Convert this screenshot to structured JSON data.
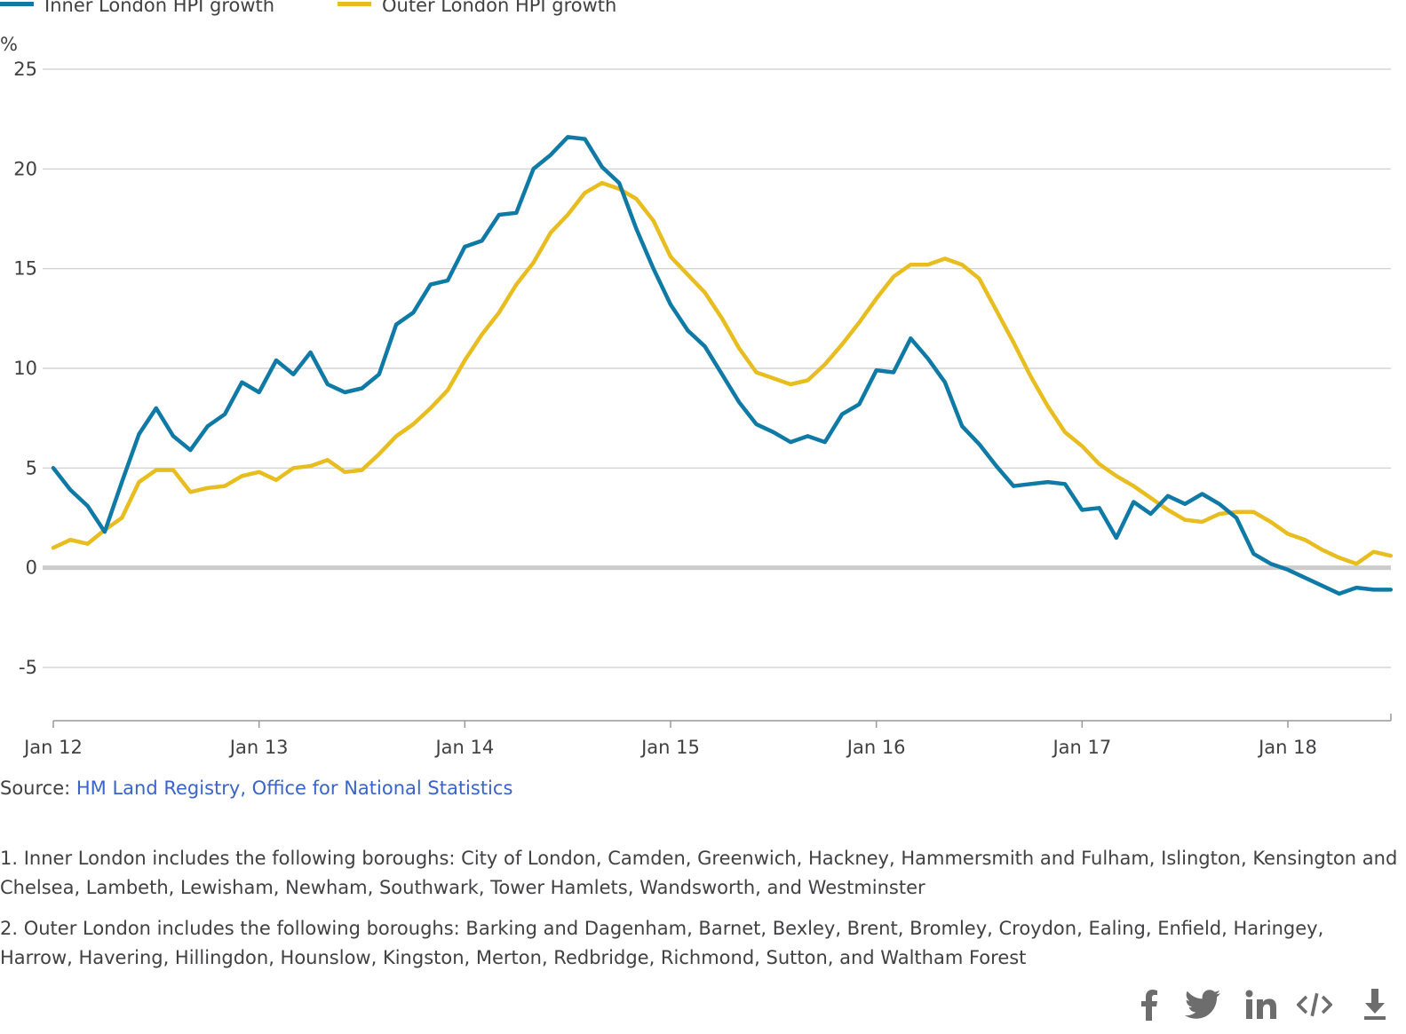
{
  "legend": {
    "inner_label": "Inner London HPI growth",
    "outer_label": "Outer London HPI growth"
  },
  "colors": {
    "inner": "#0f7aa5",
    "outer": "#e8bd20",
    "grid": "#cccccc",
    "zero": "#cccccc",
    "link": "#3a64c8"
  },
  "chart_data": {
    "type": "line",
    "title": "",
    "ylabel": "%",
    "xlabel": "",
    "ylim": [
      -7.5,
      25
    ],
    "yticks": [
      25,
      20,
      15,
      10,
      5,
      0,
      -5
    ],
    "ytick_labels": [
      "25",
      "20",
      "15",
      "10",
      "5",
      "0",
      "-5"
    ],
    "x_start": "Jan 12",
    "x_tick_labels": [
      "Jan 12",
      "Jan 13",
      "Jan 14",
      "Jan 15",
      "Jan 16",
      "Jan 17",
      "Jan 18"
    ],
    "x_tick_month_index": [
      0,
      12,
      24,
      36,
      48,
      60,
      72
    ],
    "grid": true,
    "legend_position": "top-left",
    "series": [
      {
        "name": "Inner London HPI growth",
        "values": [
          5.0,
          3.9,
          3.1,
          1.8,
          4.3,
          6.7,
          8.0,
          6.6,
          5.9,
          7.1,
          7.7,
          9.3,
          8.8,
          10.4,
          9.7,
          10.8,
          9.2,
          8.8,
          9.0,
          9.7,
          12.2,
          12.8,
          14.2,
          14.4,
          16.1,
          16.4,
          17.7,
          17.8,
          20.0,
          20.7,
          21.6,
          21.5,
          20.1,
          19.3,
          17.0,
          15.0,
          13.2,
          11.9,
          11.1,
          9.7,
          8.3,
          7.2,
          6.8,
          6.3,
          6.6,
          6.3,
          7.7,
          8.2,
          9.9,
          9.8,
          11.5,
          10.5,
          9.3,
          7.1,
          6.2,
          5.1,
          4.1,
          4.2,
          4.3,
          4.2,
          2.9,
          3.0,
          1.5,
          3.3,
          2.7,
          3.6,
          3.2,
          3.7,
          3.2,
          2.5,
          0.7,
          0.2,
          -0.1,
          -0.5,
          -0.9,
          -1.3,
          -1.0,
          -1.1,
          -1.1
        ]
      },
      {
        "name": "Outer London HPI growth",
        "values": [
          1.0,
          1.4,
          1.2,
          1.9,
          2.5,
          4.3,
          4.9,
          4.9,
          3.8,
          4.0,
          4.1,
          4.6,
          4.8,
          4.4,
          5.0,
          5.1,
          5.4,
          4.8,
          4.9,
          5.7,
          6.6,
          7.2,
          8.0,
          8.9,
          10.4,
          11.7,
          12.8,
          14.2,
          15.3,
          16.8,
          17.7,
          18.8,
          19.3,
          19.0,
          18.5,
          17.4,
          15.6,
          14.7,
          13.8,
          12.5,
          11.0,
          9.8,
          9.5,
          9.2,
          9.4,
          10.2,
          11.2,
          12.3,
          13.5,
          14.6,
          15.2,
          15.2,
          15.5,
          15.2,
          14.5,
          12.9,
          11.3,
          9.6,
          8.1,
          6.8,
          6.1,
          5.2,
          4.6,
          4.1,
          3.5,
          2.9,
          2.4,
          2.3,
          2.7,
          2.8,
          2.8,
          2.3,
          1.7,
          1.4,
          0.9,
          0.5,
          0.2,
          0.8,
          0.6
        ]
      }
    ]
  },
  "source": {
    "prefix": "Source: ",
    "link_text": "HM Land Registry, Office for National Statistics"
  },
  "notes": [
    "1. Inner London includes the following boroughs: City of London, Camden, Greenwich, Hackney, Hammersmith and Fulham, Islington, Kensington and Chelsea, Lambeth, Lewisham, Newham, Southwark, Tower Hamlets, Wandsworth, and Westminster",
    "2. Outer London includes the following boroughs: Barking and Dagenham, Barnet, Bexley, Brent, Bromley, Croydon, Ealing, Enfield, Haringey, Harrow, Havering, Hillingdon, Hounslow, Kingston, Merton, Redbridge, Richmond, Sutton, and Waltham Forest"
  ],
  "share": {
    "icons": [
      "facebook-icon",
      "twitter-icon",
      "linkedin-icon",
      "embed-code-icon",
      "download-icon"
    ]
  }
}
